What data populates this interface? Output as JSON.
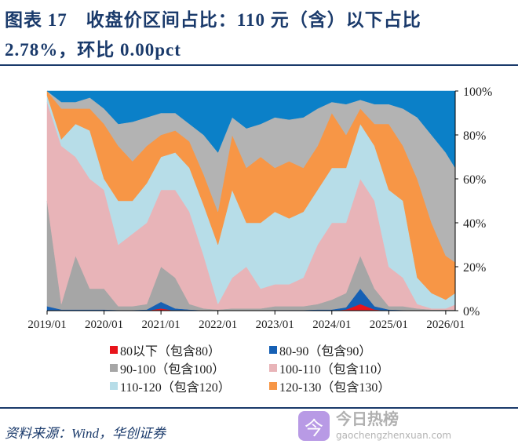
{
  "title_line1": "图表 17　收盘价区间占比：110 元（含）以下占比",
  "title_line2": "2.78%，环比 0.00pct",
  "source": "资料来源：Wind，华创证券",
  "watermark": {
    "icon": "今",
    "name": "今日热榜",
    "url": "gaochengzhenxuan.com"
  },
  "chart_data": {
    "type": "area",
    "stacked": true,
    "percent": true,
    "xlabel": "",
    "ylabel": "",
    "ylim": [
      0,
      100
    ],
    "y_ticks": [
      "0%",
      "20%",
      "40%",
      "60%",
      "80%",
      "100%"
    ],
    "y_axis_side": "right",
    "x_ticks": [
      "2019/01",
      "2020/01",
      "2021/01",
      "2022/01",
      "2023/01",
      "2024/01",
      "2025/01",
      "2026/01"
    ],
    "legend_position": "bottom",
    "x": [
      "2019/01",
      "2019/04",
      "2019/07",
      "2019/10",
      "2020/01",
      "2020/04",
      "2020/07",
      "2020/10",
      "2021/01",
      "2021/04",
      "2021/07",
      "2021/10",
      "2022/01",
      "2022/04",
      "2022/07",
      "2022/10",
      "2023/01",
      "2023/04",
      "2023/07",
      "2023/10",
      "2024/01",
      "2024/04",
      "2024/07",
      "2024/10",
      "2025/01",
      "2025/04",
      "2025/07",
      "2025/10",
      "2026/01",
      "2026/03"
    ],
    "series": [
      {
        "name": "80以下（包含80）",
        "color": "#e8141b",
        "values": [
          0,
          0,
          0,
          0,
          0,
          0,
          0,
          0,
          1,
          0,
          0,
          0,
          0,
          0,
          0,
          0,
          0,
          0,
          0,
          0,
          0,
          0.5,
          3,
          0.5,
          0,
          0,
          0,
          0,
          0,
          0
        ]
      },
      {
        "name": "80-90（包含90）",
        "color": "#1660b4",
        "values": [
          2,
          0.5,
          0.5,
          0.5,
          0.5,
          0.3,
          0.3,
          0.5,
          3,
          1,
          0.5,
          0.2,
          0.1,
          0.2,
          0.2,
          0.2,
          0.3,
          0.3,
          0.3,
          0.5,
          0.5,
          1,
          7,
          1.5,
          0.5,
          0.3,
          0.2,
          0.1,
          0.1,
          0.1
        ]
      },
      {
        "name": "90-100（包含100）",
        "color": "#a6a6a6",
        "values": [
          48,
          2.5,
          24.5,
          9.5,
          9.5,
          1.7,
          1.7,
          2.5,
          16,
          14,
          2.5,
          0.8,
          0.4,
          0.8,
          0.8,
          0.8,
          1.7,
          1.7,
          1.7,
          2.5,
          4.5,
          6.5,
          15,
          8,
          1.5,
          1.7,
          0.8,
          0.4,
          0.4,
          0.4
        ]
      },
      {
        "name": "100-110（包含110）",
        "color": "#e8b4b8",
        "values": [
          45,
          72,
          45,
          50,
          45,
          28,
          33,
          37,
          35,
          40,
          42,
          24,
          2.5,
          14,
          19,
          9,
          10,
          10,
          13,
          27,
          35,
          32,
          35,
          40,
          18,
          13,
          2,
          0.5,
          0.5,
          2.28
        ]
      },
      {
        "name": "110-120（包含120）",
        "color": "#b7dde8",
        "values": [
          3,
          3,
          15,
          22,
          5,
          20,
          15,
          18,
          15,
          17,
          20,
          23,
          27,
          40,
          20,
          30,
          33,
          30,
          30,
          25,
          25,
          25,
          25,
          25,
          35,
          35,
          12,
          7,
          4,
          5.22
        ]
      },
      {
        "name": "120-130（包含130）",
        "color": "#f79646",
        "values": [
          2,
          14,
          7,
          10,
          25,
          25,
          18,
          17,
          10,
          10,
          12,
          14,
          15,
          25,
          25,
          30,
          20,
          26,
          20,
          20,
          25,
          15,
          7,
          10,
          30,
          25,
          45,
          32,
          20,
          14
        ]
      },
      {
        "name": null,
        "color": "#b3b3b3",
        "values": [
          0,
          3,
          3,
          5,
          7,
          10,
          18,
          13,
          10,
          8,
          8,
          18,
          27,
          8,
          18,
          15,
          23,
          19,
          23,
          17,
          5,
          14,
          4,
          9,
          9,
          17,
          28,
          40,
          47,
          43
        ]
      },
      {
        "name": null,
        "color": "#0b80c8",
        "values": [
          0,
          5,
          5,
          3,
          8,
          15,
          14,
          12,
          10,
          10,
          15,
          20,
          28,
          12,
          17,
          15,
          12,
          13,
          12,
          8,
          5,
          6,
          4,
          6,
          6,
          8,
          12,
          20,
          28,
          35
        ]
      }
    ]
  }
}
